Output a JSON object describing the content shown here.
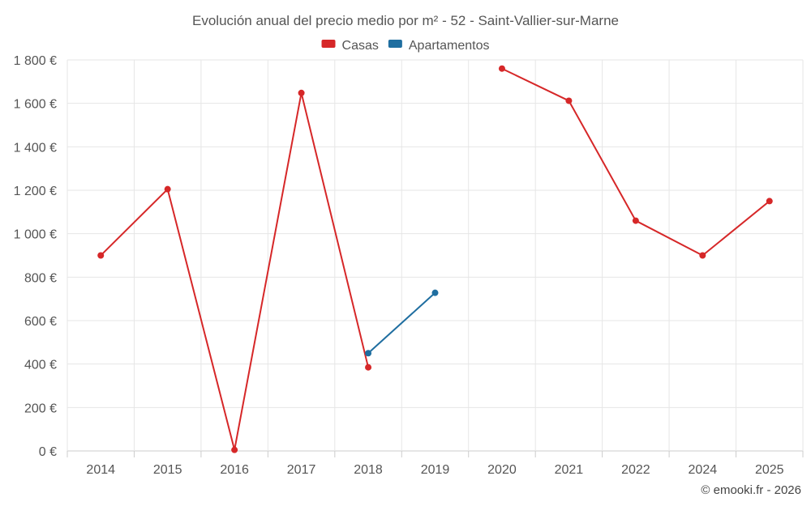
{
  "chart_data": {
    "type": "line",
    "title": "Evolución anual del precio medio por m² - 52 - Saint-Vallier-sur-Marne",
    "categories": [
      "2014",
      "2015",
      "2016",
      "2017",
      "2018",
      "2019",
      "2020",
      "2021",
      "2022",
      "2024",
      "2025"
    ],
    "y_ticks": [
      "0 €",
      "200 €",
      "400 €",
      "600 €",
      "800 €",
      "1 000 €",
      "1 200 €",
      "1 400 €",
      "1 600 €",
      "1 800 €"
    ],
    "ylim": [
      0,
      1800
    ],
    "legend_position": "top-center",
    "grid": true,
    "series": [
      {
        "name": "Casas",
        "color": "#d62728",
        "values": [
          900,
          1205,
          5,
          1648,
          385,
          null,
          1760,
          1612,
          1060,
          900,
          1150
        ]
      },
      {
        "name": "Apartamentos",
        "color": "#1f6ea0",
        "values": [
          null,
          null,
          null,
          null,
          450,
          728,
          null,
          null,
          null,
          null,
          null
        ]
      }
    ]
  },
  "credit": "© emooki.fr - 2026"
}
